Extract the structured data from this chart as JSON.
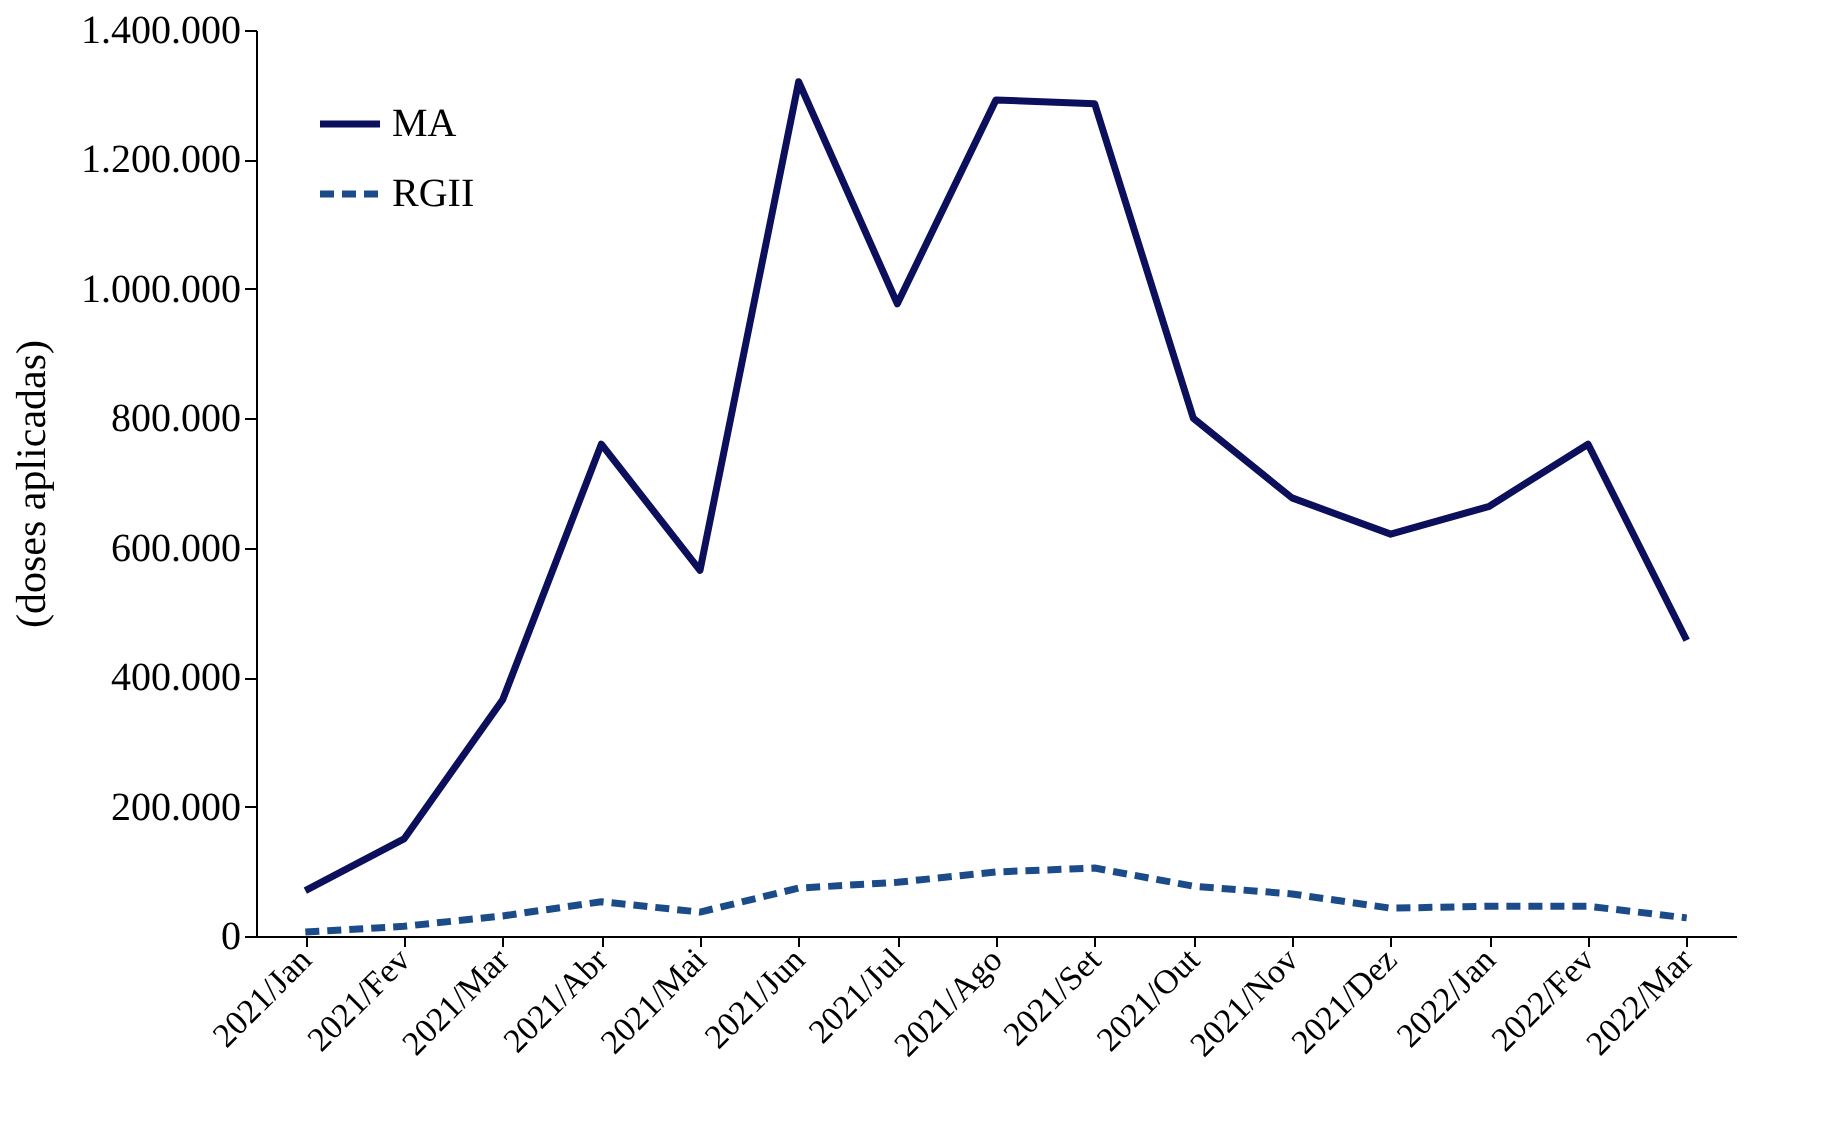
{
  "chart_data": {
    "type": "line",
    "ylabel": "(doses aplicadas)",
    "categories": [
      "2021/Jan",
      "2021/Fev",
      "2021/Mar",
      "2021/Abr",
      "2021/Mai",
      "2021/Jun",
      "2021/Jul",
      "2021/Ago",
      "2021/Set",
      "2021/Out",
      "2021/Nov",
      "2021/Dez",
      "2022/Jan",
      "2022/Fev",
      "2022/Mar"
    ],
    "series": [
      {
        "name": "MA",
        "color": "#0b0f5c",
        "line_style": "solid",
        "values": [
          70000,
          150000,
          365000,
          760000,
          565000,
          1320000,
          977000,
          1292000,
          1286000,
          800000,
          677000,
          621000,
          664000,
          760000,
          457000
        ]
      },
      {
        "name": "RGII",
        "color": "#1c4b8a",
        "line_style": "dashed",
        "values": [
          6000,
          15000,
          31000,
          53000,
          37000,
          74000,
          83000,
          99000,
          105000,
          77000,
          65000,
          43000,
          46000,
          46000,
          28000
        ]
      }
    ],
    "ylim": [
      0,
      1400000
    ],
    "yticks": [
      0,
      {
        "value": 200000,
        "label": "200.000"
      },
      {
        "value": 400000,
        "label": "400.000"
      },
      {
        "value": 600000,
        "label": "600.000"
      },
      {
        "value": 800000,
        "label": "800.000"
      },
      {
        "value": 1000000,
        "label": "1.000.000"
      },
      {
        "value": 1200000,
        "label": "1.200.000"
      },
      {
        "value": 1400000,
        "label": "1.400.000"
      }
    ],
    "grid": false,
    "legend": "top left",
    "marker": "none"
  }
}
